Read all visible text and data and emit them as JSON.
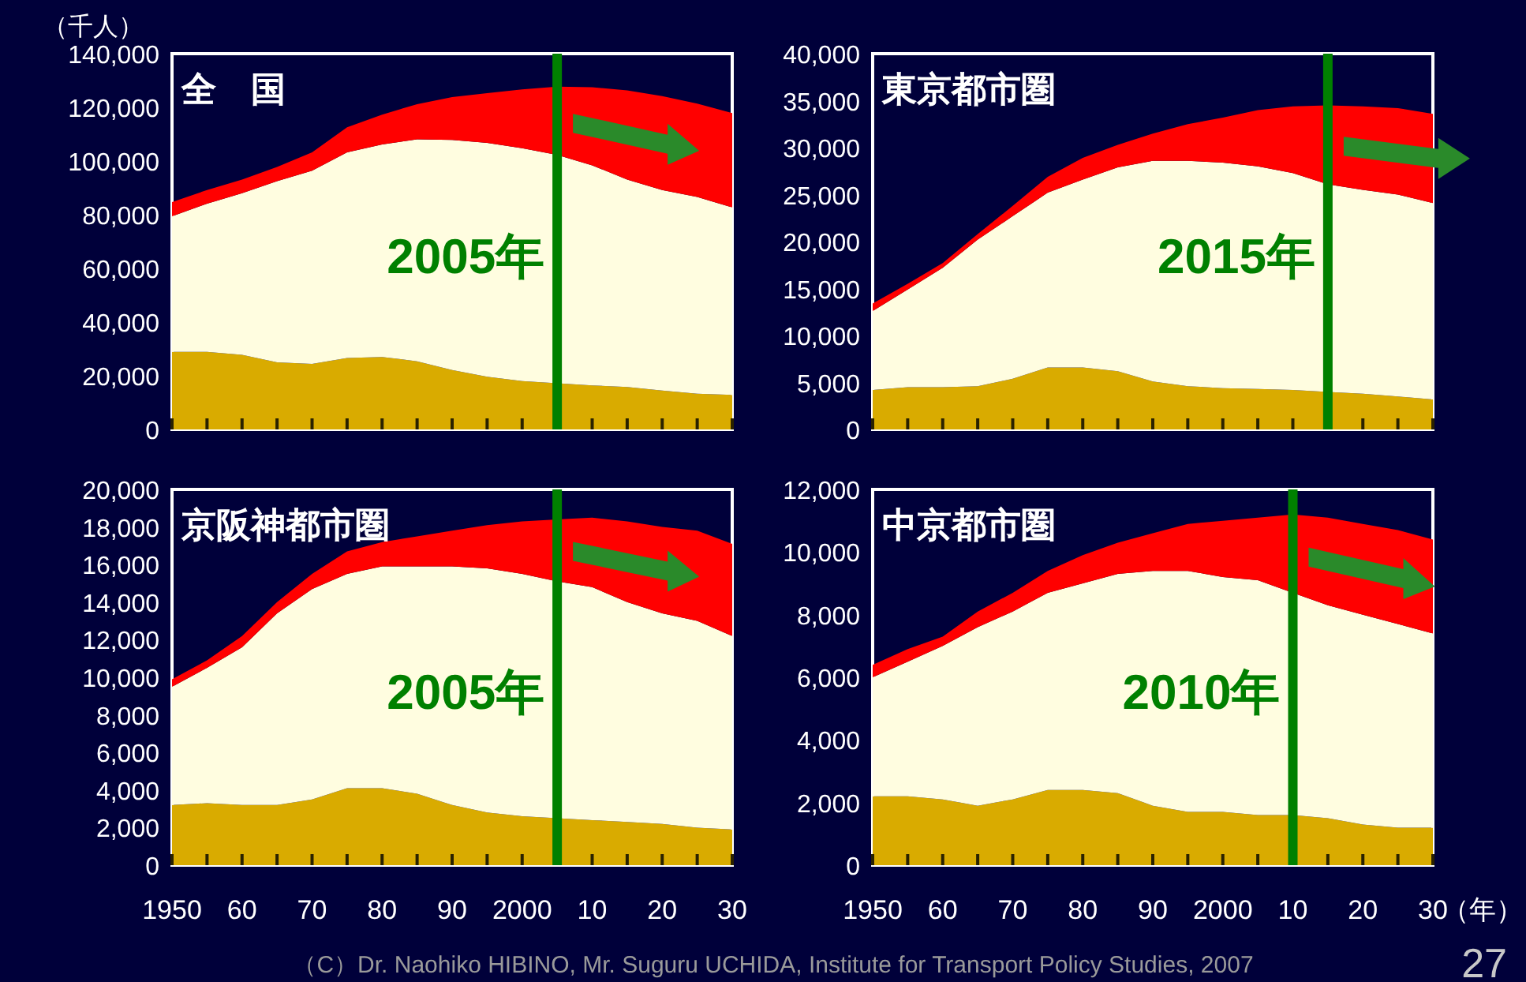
{
  "chart_data": [
    {
      "type": "area",
      "stacked": true,
      "title": "全　国",
      "ylabel": "（千人）",
      "tick_labels": "y",
      "x": [
        1950,
        1955,
        1960,
        1965,
        1970,
        1975,
        1980,
        1985,
        1990,
        1995,
        2000,
        2005,
        2010,
        2015,
        2020,
        2025,
        2030
      ],
      "xlim": [
        1950,
        2030
      ],
      "xticks": [
        {
          "value": 1950,
          "label": null
        },
        {
          "value": 1955,
          "label": null
        },
        {
          "value": 1960,
          "label": null
        },
        {
          "value": 1965,
          "label": null
        },
        {
          "value": 1970,
          "label": null
        },
        {
          "value": 1975,
          "label": null
        },
        {
          "value": 1980,
          "label": null
        },
        {
          "value": 1985,
          "label": null
        },
        {
          "value": 1990,
          "label": null
        },
        {
          "value": 1995,
          "label": null
        },
        {
          "value": 2000,
          "label": null
        },
        {
          "value": 2005,
          "label": null
        },
        {
          "value": 2010,
          "label": null
        },
        {
          "value": 2015,
          "label": null
        },
        {
          "value": 2020,
          "label": null
        },
        {
          "value": 2025,
          "label": null
        },
        {
          "value": 2030,
          "label": null
        }
      ],
      "ylim": [
        0,
        140000
      ],
      "yticks": [
        {
          "value": 0,
          "label": "0"
        },
        {
          "value": 20000,
          "label": "20,000"
        },
        {
          "value": 40000,
          "label": "40,000"
        },
        {
          "value": 60000,
          "label": "60,000"
        },
        {
          "value": 80000,
          "label": "80,000"
        },
        {
          "value": 100000,
          "label": "100,000"
        },
        {
          "value": 120000,
          "label": "120,000"
        },
        {
          "value": 140000,
          "label": "140,000"
        }
      ],
      "series": [
        {
          "color": "#d9ab00",
          "values": [
            28900,
            28900,
            27800,
            25000,
            24400,
            26600,
            27000,
            25400,
            22100,
            19600,
            18000,
            17200,
            16400,
            15800,
            14500,
            13300,
            12900
          ]
        },
        {
          "color": "#fffde0",
          "values": [
            50500,
            55200,
            60200,
            67500,
            72000,
            76600,
            79200,
            82700,
            85800,
            87200,
            86800,
            85100,
            82000,
            77300,
            74700,
            73300,
            69800
          ]
        },
        {
          "color": "#ff0000",
          "values": [
            5300,
            5100,
            5100,
            5300,
            6800,
            9400,
            11100,
            13100,
            15900,
            18500,
            21900,
            25400,
            29100,
            33200,
            35000,
            34800,
            35200
          ]
        }
      ],
      "ref_lines": [
        {
          "axis": "x",
          "value": 2005,
          "label": "2005年",
          "color": "#008000"
        }
      ]
    },
    {
      "type": "area",
      "stacked": true,
      "title": "東京都市圏",
      "tick_labels": "y",
      "x": [
        1950,
        1955,
        1960,
        1965,
        1970,
        1975,
        1980,
        1985,
        1990,
        1995,
        2000,
        2005,
        2010,
        2015,
        2020,
        2025,
        2030
      ],
      "xlim": [
        1950,
        2030
      ],
      "xticks": [
        {
          "value": 1950,
          "label": null
        },
        {
          "value": 1955,
          "label": null
        },
        {
          "value": 1960,
          "label": null
        },
        {
          "value": 1965,
          "label": null
        },
        {
          "value": 1970,
          "label": null
        },
        {
          "value": 1975,
          "label": null
        },
        {
          "value": 1980,
          "label": null
        },
        {
          "value": 1985,
          "label": null
        },
        {
          "value": 1990,
          "label": null
        },
        {
          "value": 1995,
          "label": null
        },
        {
          "value": 2000,
          "label": null
        },
        {
          "value": 2005,
          "label": null
        },
        {
          "value": 2010,
          "label": null
        },
        {
          "value": 2015,
          "label": null
        },
        {
          "value": 2020,
          "label": null
        },
        {
          "value": 2025,
          "label": null
        },
        {
          "value": 2030,
          "label": null
        }
      ],
      "ylim": [
        0,
        40000
      ],
      "yticks": [
        {
          "value": 0,
          "label": "0"
        },
        {
          "value": 5000,
          "label": "5,000"
        },
        {
          "value": 10000,
          "label": "10,000"
        },
        {
          "value": 15000,
          "label": "15,000"
        },
        {
          "value": 20000,
          "label": "20,000"
        },
        {
          "value": 25000,
          "label": "25,000"
        },
        {
          "value": 30000,
          "label": "30,000"
        },
        {
          "value": 35000,
          "label": "35,000"
        },
        {
          "value": 40000,
          "label": "40,000"
        }
      ],
      "series": [
        {
          "color": "#d9ab00",
          "values": [
            4200,
            4500,
            4500,
            4600,
            5400,
            6600,
            6600,
            6200,
            5100,
            4600,
            4400,
            4300,
            4200,
            4000,
            3800,
            3500,
            3200
          ]
        },
        {
          "color": "#fffde0",
          "values": [
            8400,
            10400,
            12700,
            15600,
            17300,
            18600,
            20000,
            21700,
            23500,
            24000,
            24000,
            23700,
            23100,
            22100,
            21700,
            21500,
            20900
          ]
        },
        {
          "color": "#ff0000",
          "values": [
            800,
            600,
            500,
            600,
            1100,
            1700,
            2300,
            2400,
            2900,
            3900,
            4800,
            6000,
            7100,
            8400,
            8900,
            9200,
            9500
          ]
        }
      ],
      "ref_lines": [
        {
          "axis": "x",
          "value": 2015,
          "label": "2015年",
          "color": "#008000"
        }
      ]
    },
    {
      "type": "area",
      "stacked": true,
      "title": "京阪神都市圏",
      "x": [
        1950,
        1955,
        1960,
        1965,
        1970,
        1975,
        1980,
        1985,
        1990,
        1995,
        2000,
        2005,
        2010,
        2015,
        2020,
        2025,
        2030
      ],
      "xlim": [
        1950,
        2030
      ],
      "xticks": [
        {
          "value": 1950,
          "label": "1950"
        },
        {
          "value": 1955,
          "label": null
        },
        {
          "value": 1960,
          "label": "60"
        },
        {
          "value": 1965,
          "label": null
        },
        {
          "value": 1970,
          "label": "70"
        },
        {
          "value": 1975,
          "label": null
        },
        {
          "value": 1980,
          "label": "80"
        },
        {
          "value": 1985,
          "label": null
        },
        {
          "value": 1990,
          "label": "90"
        },
        {
          "value": 1995,
          "label": null
        },
        {
          "value": 2000,
          "label": "2000"
        },
        {
          "value": 2005,
          "label": null
        },
        {
          "value": 2010,
          "label": "10"
        },
        {
          "value": 2015,
          "label": null
        },
        {
          "value": 2020,
          "label": "20"
        },
        {
          "value": 2025,
          "label": null
        },
        {
          "value": 2030,
          "label": "30"
        }
      ],
      "ylim": [
        0,
        20000
      ],
      "yticks": [
        {
          "value": 0,
          "label": "0"
        },
        {
          "value": 2000,
          "label": "2,000"
        },
        {
          "value": 4000,
          "label": "4,000"
        },
        {
          "value": 6000,
          "label": "6,000"
        },
        {
          "value": 8000,
          "label": "8,000"
        },
        {
          "value": 10000,
          "label": "10,000"
        },
        {
          "value": 12000,
          "label": "12,000"
        },
        {
          "value": 14000,
          "label": "14,000"
        },
        {
          "value": 16000,
          "label": "16,000"
        },
        {
          "value": 18000,
          "label": "18,000"
        },
        {
          "value": 20000,
          "label": "20,000"
        }
      ],
      "series": [
        {
          "color": "#d9ab00",
          "values": [
            3200,
            3300,
            3200,
            3200,
            3500,
            4100,
            4100,
            3800,
            3200,
            2800,
            2600,
            2500,
            2400,
            2300,
            2200,
            2000,
            1900
          ]
        },
        {
          "color": "#fffde0",
          "values": [
            6300,
            7200,
            8400,
            10200,
            11200,
            11400,
            11800,
            12100,
            12700,
            13000,
            12900,
            12600,
            12400,
            11700,
            11200,
            11000,
            10300
          ]
        },
        {
          "color": "#ff0000",
          "values": [
            400,
            400,
            600,
            600,
            800,
            1200,
            1300,
            1600,
            1900,
            2300,
            2800,
            3300,
            3700,
            4300,
            4600,
            4800,
            4900
          ]
        }
      ],
      "ref_lines": [
        {
          "axis": "x",
          "value": 2005,
          "label": "2005年",
          "color": "#008000"
        }
      ]
    },
    {
      "type": "area",
      "stacked": true,
      "title": "中京都市圏",
      "xlabel": "（年）",
      "x": [
        1950,
        1955,
        1960,
        1965,
        1970,
        1975,
        1980,
        1985,
        1990,
        1995,
        2000,
        2005,
        2010,
        2015,
        2020,
        2025,
        2030
      ],
      "xlim": [
        1950,
        2030
      ],
      "xticks": [
        {
          "value": 1950,
          "label": "1950"
        },
        {
          "value": 1955,
          "label": null
        },
        {
          "value": 1960,
          "label": "60"
        },
        {
          "value": 1965,
          "label": null
        },
        {
          "value": 1970,
          "label": "70"
        },
        {
          "value": 1975,
          "label": null
        },
        {
          "value": 1980,
          "label": "80"
        },
        {
          "value": 1985,
          "label": null
        },
        {
          "value": 1990,
          "label": "90"
        },
        {
          "value": 1995,
          "label": null
        },
        {
          "value": 2000,
          "label": "2000"
        },
        {
          "value": 2005,
          "label": null
        },
        {
          "value": 2010,
          "label": "10"
        },
        {
          "value": 2015,
          "label": null
        },
        {
          "value": 2020,
          "label": "20"
        },
        {
          "value": 2025,
          "label": null
        },
        {
          "value": 2030,
          "label": "30"
        }
      ],
      "ylim": [
        0,
        12000
      ],
      "yticks": [
        {
          "value": 0,
          "label": "0"
        },
        {
          "value": 2000,
          "label": "2,000"
        },
        {
          "value": 4000,
          "label": "4,000"
        },
        {
          "value": 6000,
          "label": "6,000"
        },
        {
          "value": 8000,
          "label": "8,000"
        },
        {
          "value": 10000,
          "label": "10,000"
        },
        {
          "value": 12000,
          "label": "12,000"
        }
      ],
      "series": [
        {
          "color": "#d9ab00",
          "values": [
            2200,
            2200,
            2100,
            1900,
            2100,
            2400,
            2400,
            2300,
            1900,
            1700,
            1700,
            1600,
            1600,
            1500,
            1300,
            1200,
            1200
          ]
        },
        {
          "color": "#fffde0",
          "values": [
            3800,
            4300,
            4900,
            5700,
            6000,
            6300,
            6600,
            7000,
            7500,
            7700,
            7500,
            7500,
            7100,
            6800,
            6700,
            6500,
            6200
          ]
        },
        {
          "color": "#ff0000",
          "values": [
            400,
            400,
            300,
            500,
            600,
            700,
            900,
            1000,
            1200,
            1500,
            1800,
            2000,
            2500,
            2800,
            2900,
            3000,
            3000
          ]
        }
      ],
      "ref_lines": [
        {
          "axis": "x",
          "value": 2010,
          "label": "2010年",
          "color": "#008000"
        }
      ],
      "annotations": [
        "（C）Dr. Naohiko HIBINO, Mr. Suguru UCHIDA, Institute for Transport Policy Studies, 2007",
        "27"
      ]
    }
  ]
}
